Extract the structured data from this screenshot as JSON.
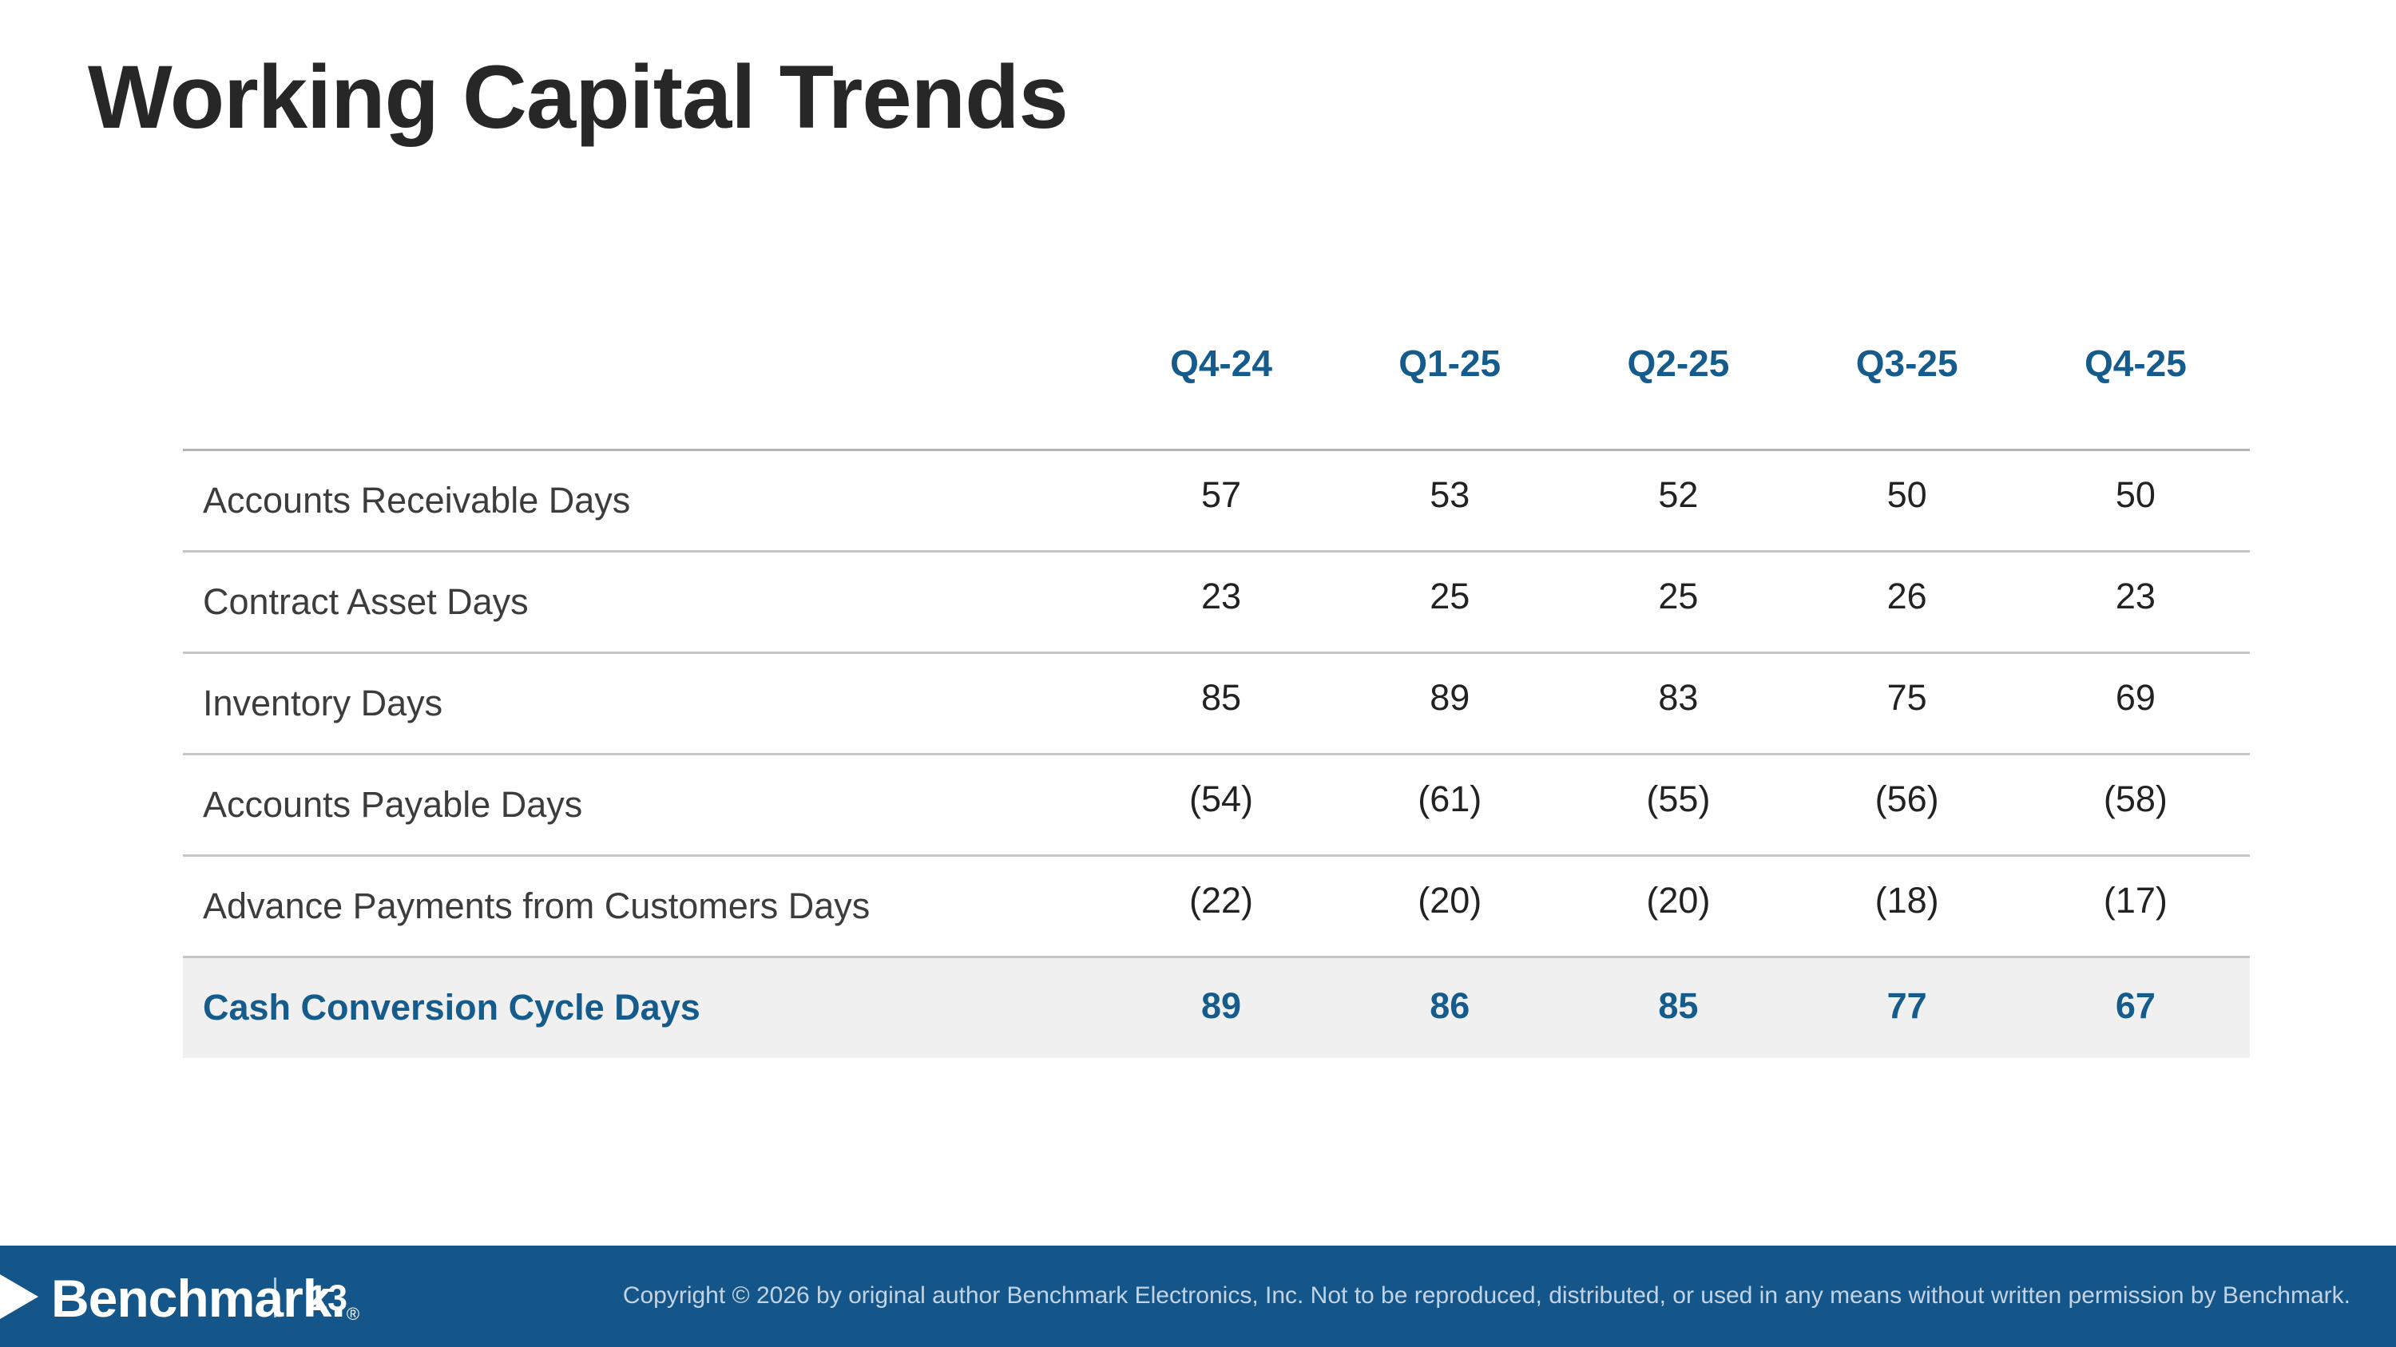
{
  "slide": {
    "title": "Working Capital Trends",
    "table": {
      "columns": [
        "Q4-24",
        "Q1-25",
        "Q2-25",
        "Q3-25",
        "Q4-25"
      ],
      "rows": [
        {
          "label": "Accounts Receivable Days",
          "values": [
            "57",
            "53",
            "52",
            "50",
            "50"
          ]
        },
        {
          "label": "Contract Asset Days",
          "values": [
            "23",
            "25",
            "25",
            "26",
            "23"
          ]
        },
        {
          "label": "Inventory Days",
          "values": [
            "85",
            "89",
            "83",
            "75",
            "69"
          ]
        },
        {
          "label": "Accounts Payable Days",
          "values": [
            "(54)",
            "(61)",
            "(55)",
            "(56)",
            "(58)"
          ]
        },
        {
          "label": "Advance Payments from Customers Days",
          "values": [
            "(22)",
            "(20)",
            "(20)",
            "(18)",
            "(17)"
          ]
        },
        {
          "label": "Cash Conversion Cycle Days",
          "values": [
            "89",
            "86",
            "85",
            "77",
            "67"
          ]
        }
      ]
    },
    "footer": {
      "logo_text": "Benchmark",
      "logo_registered": "®",
      "page_number": "13",
      "copyright": "Copyright © 2026 by original author Benchmark Electronics, Inc. Not to be reproduced, distributed, or used in any means without written permission by Benchmark."
    },
    "colors": {
      "brand_blue": "#15568a",
      "accent_text_blue": "#155c8c",
      "highlight_row_bg": "#f0f0f0",
      "title_text": "#272727"
    }
  },
  "chart_data": {
    "type": "table",
    "title": "Working Capital Trends",
    "categories": [
      "Q4-24",
      "Q1-25",
      "Q2-25",
      "Q3-25",
      "Q4-25"
    ],
    "series": [
      {
        "name": "Accounts Receivable Days",
        "values": [
          57,
          53,
          52,
          50,
          50
        ]
      },
      {
        "name": "Contract Asset Days",
        "values": [
          23,
          25,
          25,
          26,
          23
        ]
      },
      {
        "name": "Inventory Days",
        "values": [
          85,
          89,
          83,
          75,
          69
        ]
      },
      {
        "name": "Accounts Payable Days",
        "values": [
          -54,
          -61,
          -55,
          -56,
          -58
        ]
      },
      {
        "name": "Advance Payments from Customers Days",
        "values": [
          -22,
          -20,
          -20,
          -18,
          -17
        ]
      },
      {
        "name": "Cash Conversion Cycle Days",
        "values": [
          89,
          86,
          85,
          77,
          67
        ]
      }
    ],
    "notes": "Negative values shown in accounting parentheses; Cash Conversion Cycle row highlighted"
  }
}
